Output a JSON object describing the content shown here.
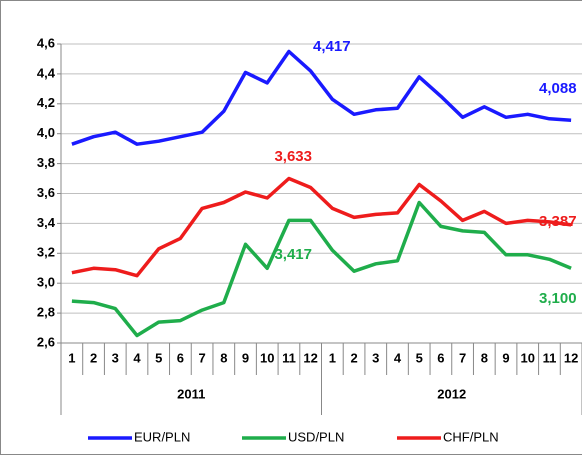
{
  "chart_data": {
    "type": "line",
    "categories": [
      "1",
      "2",
      "3",
      "4",
      "5",
      "6",
      "7",
      "8",
      "9",
      "10",
      "11",
      "12",
      "1",
      "2",
      "3",
      "4",
      "5",
      "6",
      "7",
      "8",
      "9",
      "10",
      "11",
      "12"
    ],
    "groups": [
      "2011",
      "2012"
    ],
    "series": [
      {
        "name": "EUR/PLN",
        "color": "#1a1aff",
        "values": [
          3.93,
          3.98,
          4.01,
          3.93,
          3.95,
          3.98,
          4.01,
          4.15,
          4.41,
          4.34,
          4.55,
          4.42,
          4.23,
          4.13,
          4.16,
          4.17,
          4.38,
          4.25,
          4.11,
          4.18,
          4.11,
          4.13,
          4.1,
          4.09
        ]
      },
      {
        "name": "USD/PLN",
        "color": "#1fad4b",
        "values": [
          2.88,
          2.87,
          2.83,
          2.65,
          2.74,
          2.75,
          2.82,
          2.87,
          3.26,
          3.1,
          3.42,
          3.42,
          3.22,
          3.08,
          3.13,
          3.15,
          3.54,
          3.38,
          3.35,
          3.34,
          3.19,
          3.19,
          3.16,
          3.1
        ]
      },
      {
        "name": "CHF/PLN",
        "color": "#ee1c1c",
        "values": [
          3.07,
          3.1,
          3.09,
          3.05,
          3.23,
          3.3,
          3.5,
          3.54,
          3.61,
          3.57,
          3.7,
          3.64,
          3.5,
          3.44,
          3.46,
          3.47,
          3.66,
          3.55,
          3.42,
          3.48,
          3.4,
          3.42,
          3.41,
          3.39
        ]
      }
    ],
    "annotations": [
      {
        "text": "4,417",
        "color": "#1a1aff"
      },
      {
        "text": "4,088",
        "color": "#1a1aff"
      },
      {
        "text": "3,633",
        "color": "#ee1c1c"
      },
      {
        "text": "3,387",
        "color": "#ee1c1c"
      },
      {
        "text": "3,417",
        "color": "#1fad4b"
      },
      {
        "text": "3,100",
        "color": "#1fad4b"
      }
    ],
    "ylim": [
      2.6,
      4.6
    ],
    "yticks": [
      {
        "value": 2.6,
        "label": "2,6"
      },
      {
        "value": 2.8,
        "label": "2,8"
      },
      {
        "value": 3.0,
        "label": "3,0"
      },
      {
        "value": 3.2,
        "label": "3,2"
      },
      {
        "value": 3.4,
        "label": "3,4"
      },
      {
        "value": 3.6,
        "label": "3,6"
      },
      {
        "value": 3.8,
        "label": "3,8"
      },
      {
        "value": 4.0,
        "label": "4,0"
      },
      {
        "value": 4.2,
        "label": "4,2"
      },
      {
        "value": 4.4,
        "label": "4,4"
      },
      {
        "value": 4.6,
        "label": "4,6"
      }
    ],
    "grid": true,
    "legend": "bottom"
  }
}
